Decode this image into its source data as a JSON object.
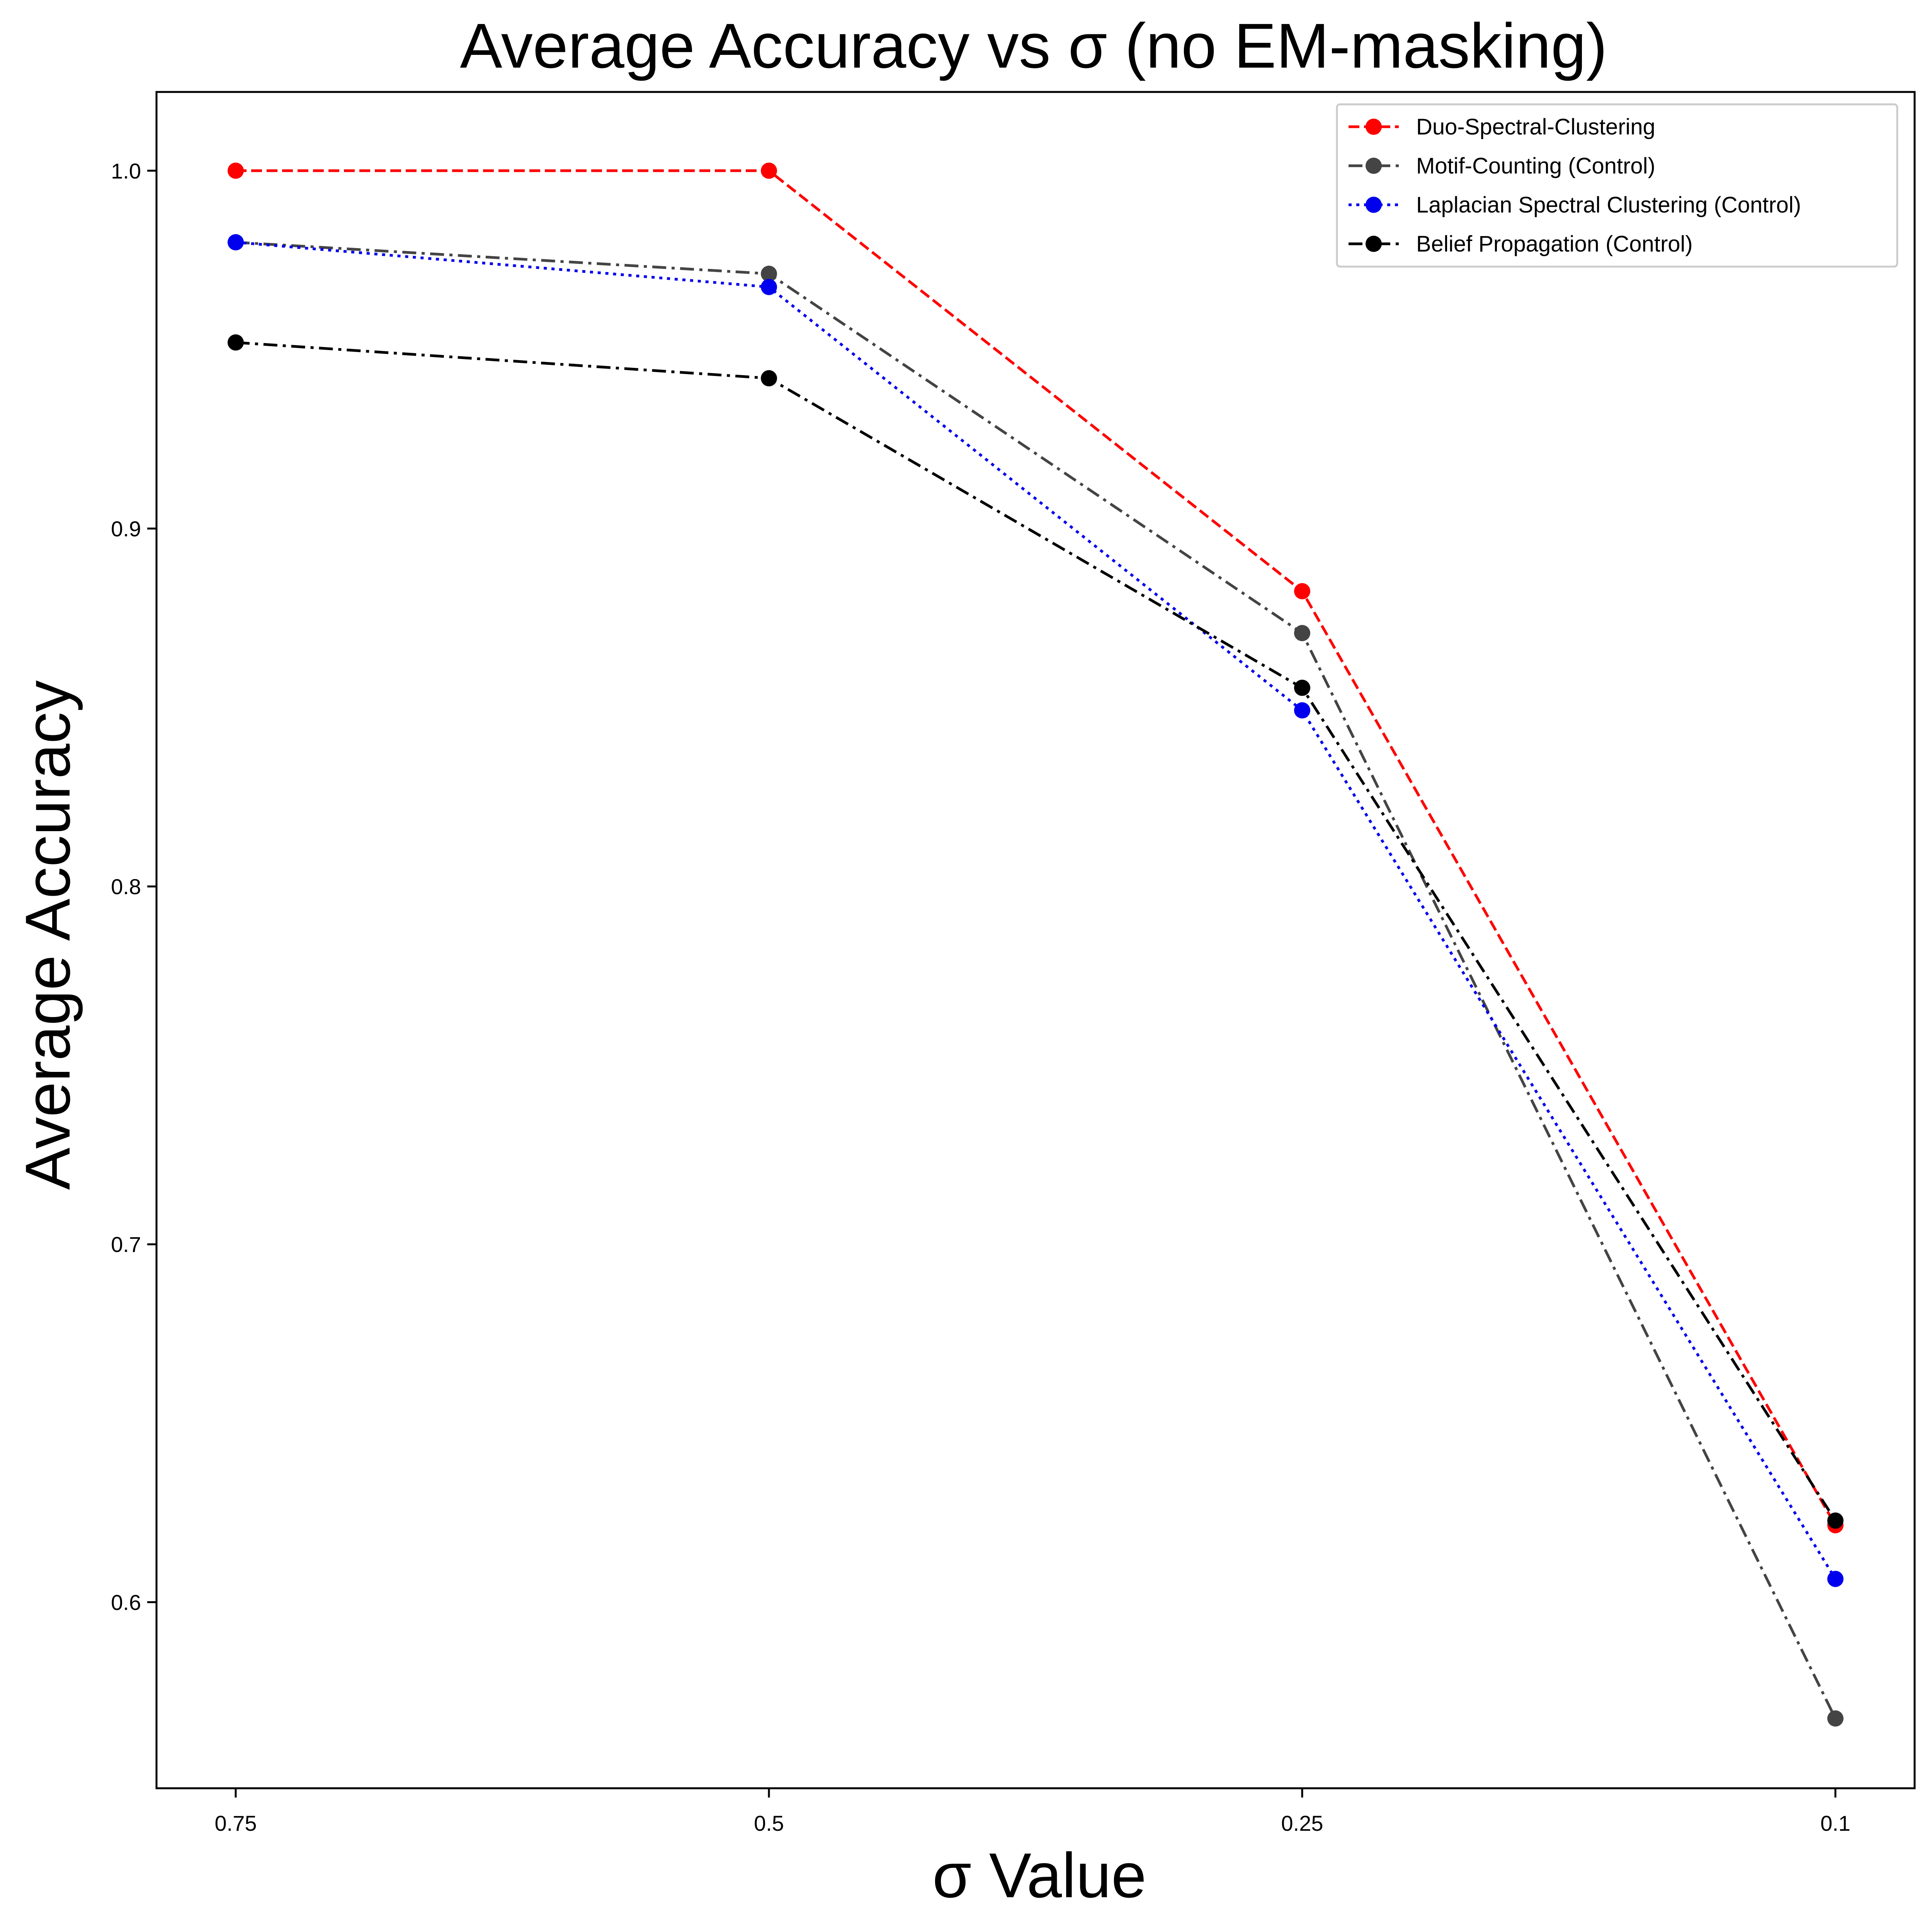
{
  "chart_data": {
    "type": "line",
    "title": "Average Accuracy vs  σ (no EM-masking)",
    "xlabel": "σ Value",
    "ylabel": "Average Accuracy",
    "categories": [
      "0.75",
      "0.5",
      "0.25",
      "0.1"
    ],
    "ylim": [
      0.548,
      1.022
    ],
    "yticks": [
      0.6,
      0.7,
      0.8,
      0.9,
      1.0
    ],
    "ytick_labels": [
      "0.6",
      "0.7",
      "0.8",
      "0.9",
      "1.0"
    ],
    "grid": false,
    "legend_position": "top-right",
    "series": [
      {
        "name": "Duo-Spectral-Clustering",
        "color": "#ff0000",
        "style": "dashed",
        "values": [
          1.0,
          1.0,
          0.8825,
          0.6215
        ]
      },
      {
        "name": "Motif-Counting (Control)",
        "color": "#444444",
        "style": "dashdot",
        "values": [
          0.98,
          0.9712,
          0.8708,
          0.5675
        ]
      },
      {
        "name": "Laplacian Spectral Clustering (Control)",
        "color": "#0000ee",
        "style": "dotted",
        "values": [
          0.98,
          0.9675,
          0.8492,
          0.6065
        ]
      },
      {
        "name": "Belief Propagation (Control)",
        "color": "#000000",
        "style": "dashdot",
        "values": [
          0.952,
          0.942,
          0.8555,
          0.6228
        ]
      }
    ]
  }
}
